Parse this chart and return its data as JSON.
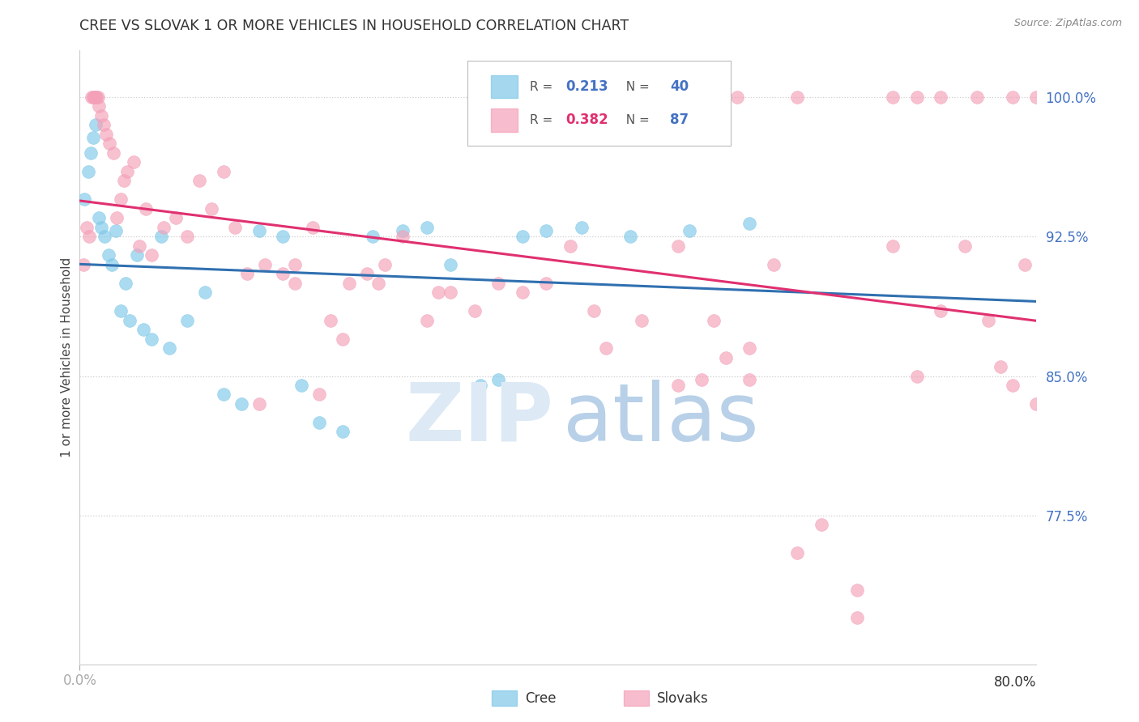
{
  "title": "CREE VS SLOVAK 1 OR MORE VEHICLES IN HOUSEHOLD CORRELATION CHART",
  "source": "Source: ZipAtlas.com",
  "ylabel": "1 or more Vehicles in Household",
  "x_tick_left": "0.0%",
  "x_tick_right": "80.0%",
  "y_ticks": [
    77.5,
    85.0,
    92.5,
    100.0
  ],
  "legend_R1": "0.213",
  "legend_N1": "40",
  "legend_R2": "0.382",
  "legend_N2": "87",
  "cree_color": "#7fc8e8",
  "slovak_color": "#f4a0b8",
  "cree_line_color": "#3070b0",
  "slovak_line_color": "#e03070",
  "right_label_color": "#4472c4",
  "grid_color": "#cccccc",
  "background_color": "#ffffff",
  "x_min": 0.0,
  "x_max": 80.0,
  "y_min": 69.5,
  "y_max": 102.5,
  "cree_x": [
    0.4,
    0.7,
    0.9,
    1.1,
    1.3,
    1.6,
    1.8,
    2.1,
    2.4,
    2.7,
    3.0,
    3.4,
    3.8,
    4.2,
    4.8,
    5.3,
    6.0,
    6.8,
    7.5,
    9.0,
    10.5,
    12.0,
    13.5,
    15.0,
    17.0,
    18.5,
    20.0,
    22.0,
    24.5,
    27.0,
    29.0,
    31.0,
    33.5,
    35.0,
    37.0,
    39.0,
    42.0,
    46.0,
    51.0,
    56.0
  ],
  "cree_y": [
    94.5,
    96.0,
    97.0,
    97.8,
    98.5,
    93.5,
    93.0,
    92.5,
    91.5,
    91.0,
    92.8,
    88.5,
    90.0,
    88.0,
    91.5,
    87.5,
    87.0,
    92.5,
    86.5,
    88.0,
    89.5,
    84.0,
    83.5,
    92.8,
    92.5,
    84.5,
    82.5,
    82.0,
    92.5,
    92.8,
    93.0,
    91.0,
    84.5,
    84.8,
    92.5,
    92.8,
    93.0,
    92.5,
    92.8,
    93.2
  ],
  "slovak_x": [
    0.3,
    0.6,
    0.8,
    1.0,
    1.1,
    1.2,
    1.3,
    1.4,
    1.5,
    1.6,
    1.8,
    2.0,
    2.2,
    2.5,
    2.8,
    3.1,
    3.4,
    3.7,
    4.0,
    4.5,
    5.0,
    5.5,
    6.0,
    7.0,
    8.0,
    9.0,
    10.0,
    11.0,
    12.0,
    13.0,
    14.0,
    15.5,
    17.0,
    18.0,
    19.5,
    21.0,
    22.5,
    24.0,
    25.5,
    27.0,
    29.0,
    31.0,
    33.0,
    35.0,
    37.0,
    39.0,
    41.0,
    44.0,
    47.0,
    50.0,
    53.0,
    56.0,
    43.0,
    15.0,
    22.0,
    30.0,
    68.0,
    70.0,
    72.0,
    74.0,
    76.0,
    77.0,
    78.0,
    79.0,
    80.0,
    18.0,
    20.0,
    25.0,
    50.0,
    52.0,
    54.0,
    56.0,
    58.0,
    60.0,
    62.0,
    65.0,
    68.0,
    70.0,
    72.0,
    75.0,
    78.0,
    80.0,
    45.0,
    50.0,
    55.0,
    60.0,
    65.0
  ],
  "slovak_y": [
    91.0,
    93.0,
    92.5,
    100.0,
    100.0,
    100.0,
    100.0,
    100.0,
    100.0,
    99.5,
    99.0,
    98.5,
    98.0,
    97.5,
    97.0,
    93.5,
    94.5,
    95.5,
    96.0,
    96.5,
    92.0,
    94.0,
    91.5,
    93.0,
    93.5,
    92.5,
    95.5,
    94.0,
    96.0,
    93.0,
    90.5,
    91.0,
    90.5,
    91.0,
    93.0,
    88.0,
    90.0,
    90.5,
    91.0,
    92.5,
    88.0,
    89.5,
    88.5,
    90.0,
    89.5,
    90.0,
    92.0,
    86.5,
    88.0,
    92.0,
    88.0,
    86.5,
    88.5,
    83.5,
    87.0,
    89.5,
    92.0,
    85.0,
    88.5,
    92.0,
    88.0,
    85.5,
    84.5,
    91.0,
    83.5,
    90.0,
    84.0,
    90.0,
    84.5,
    84.8,
    86.0,
    84.8,
    91.0,
    75.5,
    77.0,
    73.5,
    100.0,
    100.0,
    100.0,
    100.0,
    100.0,
    100.0,
    100.0,
    100.0,
    100.0,
    100.0,
    72.0
  ]
}
